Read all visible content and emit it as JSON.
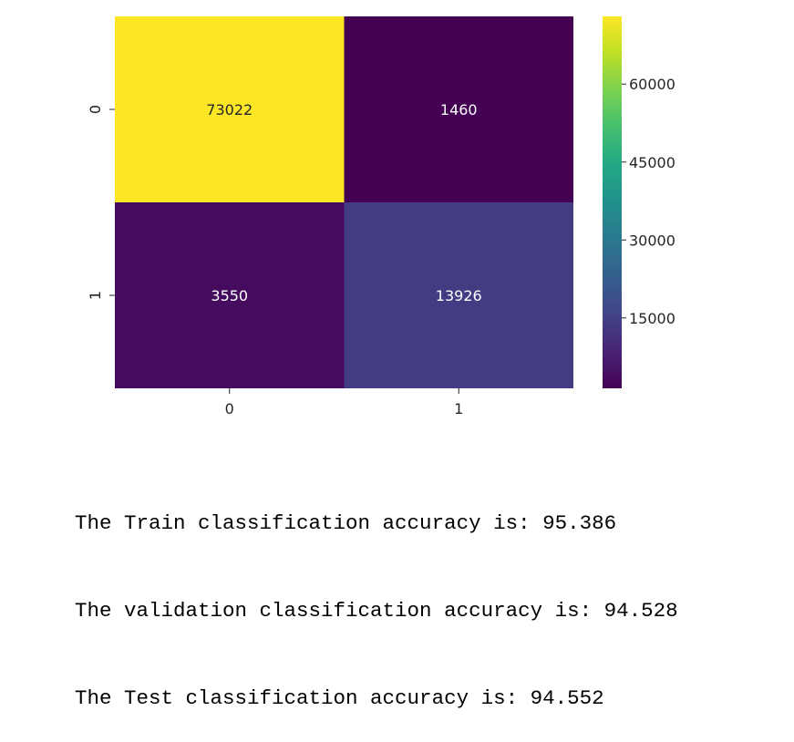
{
  "chart_data": {
    "type": "heatmap",
    "title": "",
    "xlabel": "",
    "ylabel": "",
    "x_categories": [
      "0",
      "1"
    ],
    "y_categories": [
      "0",
      "1"
    ],
    "values": [
      [
        73022,
        1460
      ],
      [
        3550,
        13926
      ]
    ],
    "colormap": "viridis",
    "colorbar": {
      "range": [
        1460,
        73022
      ],
      "ticks": [
        15000,
        30000,
        45000,
        60000
      ]
    }
  },
  "output": {
    "lines": [
      "The Train classification accuracy is: 95.386",
      "The validation classification accuracy is: 94.528",
      "The Test classification accuracy is: 94.552"
    ]
  }
}
